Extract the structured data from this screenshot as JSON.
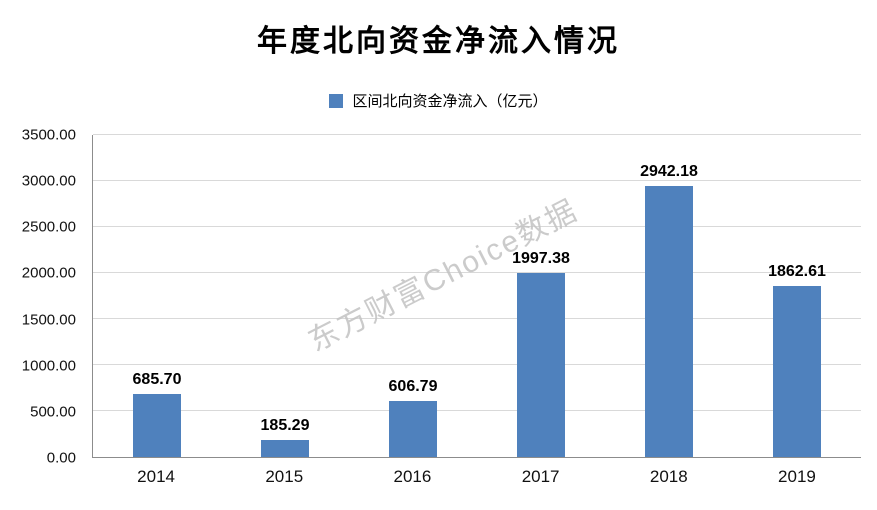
{
  "chart_data": {
    "type": "bar",
    "title": "年度北向资金净流入情况",
    "legend": "区间北向资金净流入（亿元）",
    "categories": [
      "2014",
      "2015",
      "2016",
      "2017",
      "2018",
      "2019"
    ],
    "values": [
      685.7,
      185.29,
      606.79,
      1997.38,
      2942.18,
      1862.61
    ],
    "value_labels": [
      "685.70",
      "185.29",
      "606.79",
      "1997.38",
      "2942.18",
      "1862.61"
    ],
    "xlabel": "",
    "ylabel": "",
    "ylim": [
      0,
      3500
    ],
    "ytick_step": 500,
    "ytick_labels": [
      "0.00",
      "500.00",
      "1000.00",
      "1500.00",
      "2000.00",
      "2500.00",
      "3000.00",
      "3500.00"
    ],
    "grid": true,
    "legend_position": "top",
    "bar_color": "#4f81bd",
    "gridline_color": "#d9d9d9",
    "watermark": "东方财富Choice数据"
  }
}
